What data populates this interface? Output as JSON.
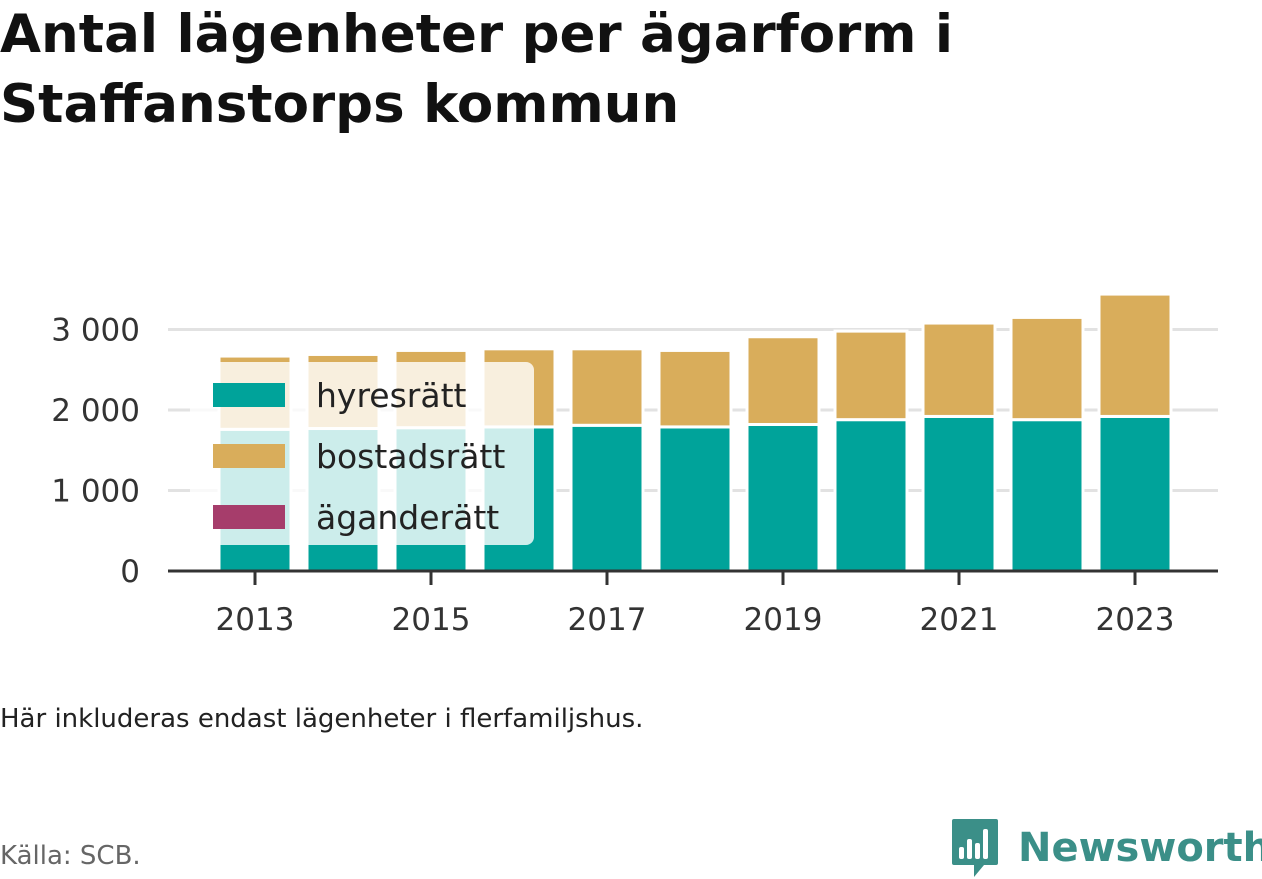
{
  "header": {
    "title": "Antal lägenheter per ägarform i Staffanstorps kommun"
  },
  "note": "Här inkluderas endast lägenheter i flerfamiljshus.",
  "source": "Källa: SCB.",
  "brand": {
    "name": "Newsworthy",
    "icon": "bar-chart-logo-icon",
    "color": "#3b8f88"
  },
  "chart_data": {
    "type": "bar",
    "stacked": true,
    "title": "Antal lägenheter per ägarform i Staffanstorps kommun",
    "xlabel": "",
    "ylabel": "",
    "categories": [
      "2013",
      "2014",
      "2015",
      "2016",
      "2017",
      "2018",
      "2019",
      "2020",
      "2021",
      "2022",
      "2023"
    ],
    "x_tick_labels": [
      "2013",
      "2015",
      "2017",
      "2019",
      "2021",
      "2023"
    ],
    "y_ticks": [
      0,
      1000,
      2000,
      3000
    ],
    "y_tick_labels": [
      "0",
      "1 000",
      "2 000",
      "3 000"
    ],
    "ylim": [
      0,
      3500
    ],
    "grid": true,
    "legend_position": "top-left",
    "series": [
      {
        "name": "hyresrätt",
        "color": "#00a39a",
        "values": [
          1760,
          1770,
          1780,
          1790,
          1810,
          1790,
          1820,
          1880,
          1920,
          1880,
          1920
        ]
      },
      {
        "name": "bostadsrätt",
        "color": "#d9ad5b",
        "values": [
          910,
          920,
          960,
          970,
          950,
          950,
          1090,
          1100,
          1160,
          1270,
          1520
        ]
      },
      {
        "name": "äganderätt",
        "color": "#a63d6b",
        "values": [
          0,
          0,
          0,
          0,
          0,
          0,
          0,
          0,
          0,
          0,
          0
        ]
      }
    ]
  }
}
